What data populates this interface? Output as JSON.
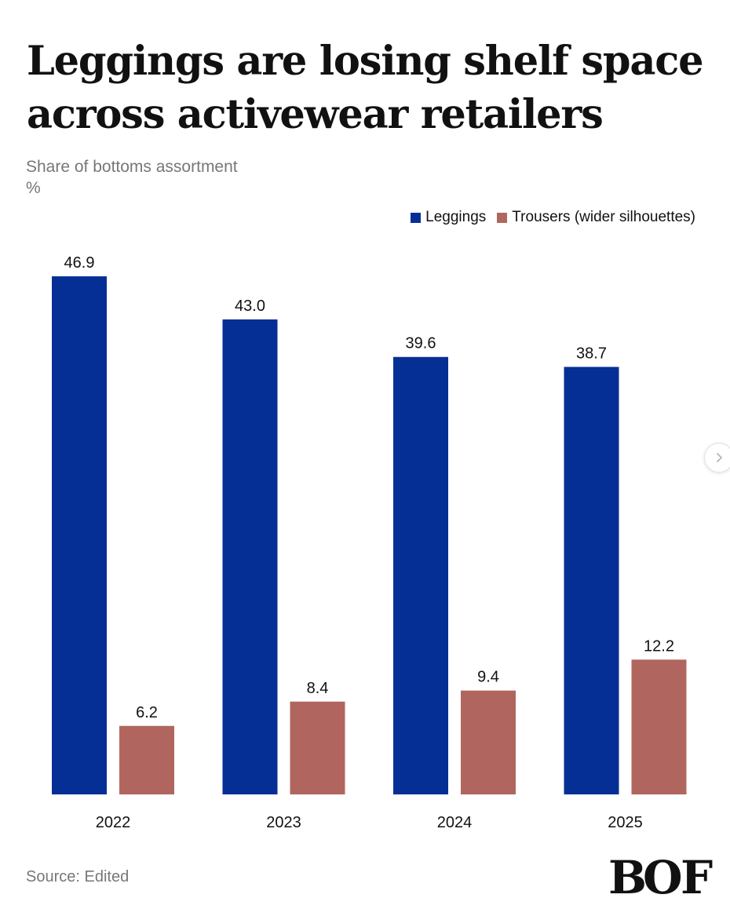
{
  "title": "Leggings are losing shelf space across activewear retailers",
  "subtitle": "Share of bottoms assortment",
  "unit": "%",
  "source": "Source: Edited",
  "logo_text": "BOF",
  "colors": {
    "leggings": "#062f96",
    "trousers": "#b0665e",
    "text": "#111111",
    "muted": "#777777"
  },
  "icons": {
    "next": "chevron-right-icon"
  },
  "chart_data": {
    "type": "bar",
    "categories": [
      "2022",
      "2023",
      "2024",
      "2025"
    ],
    "series": [
      {
        "name": "Leggings",
        "values": [
          46.9,
          43.0,
          39.6,
          38.7
        ]
      },
      {
        "name": "Trousers (wider silhouettes)",
        "values": [
          6.2,
          8.4,
          9.4,
          12.2
        ]
      }
    ],
    "value_labels": [
      [
        "46.9",
        "43.0",
        "39.6",
        "38.7"
      ],
      [
        "6.2",
        "8.4",
        "9.4",
        "12.2"
      ]
    ],
    "ylim": [
      0,
      46.9
    ],
    "grid": false,
    "legend_position": "top-right"
  }
}
